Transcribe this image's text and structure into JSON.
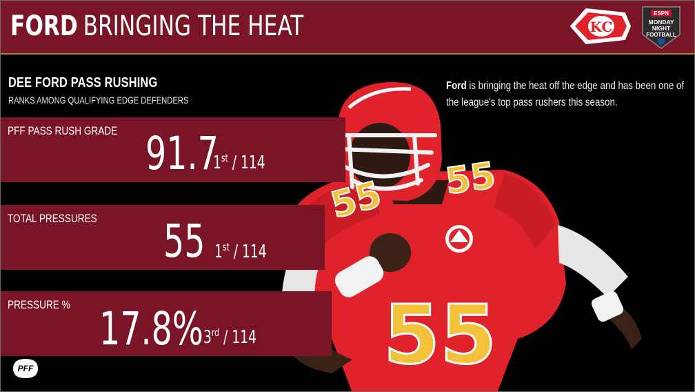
{
  "header": {
    "title_bold": "FORD",
    "title_rest": "BRINGING THE HEAT",
    "team_logo": "kc-chiefs-arrowhead-logo",
    "broadcast_logo": "monday-night-football-logo",
    "broadcast_logo_text": [
      "ESPN",
      "MONDAY",
      "NIGHT",
      "FOOTBALL"
    ]
  },
  "section": {
    "title": "DEE FORD PASS RUSHING",
    "subtitle": "RANKS AMONG QUALIFYING EDGE DEFENDERS"
  },
  "description": {
    "name": "Ford",
    "text": " is bringing the heat off the edge and has been one of the league's top pass rushers this season."
  },
  "stats": [
    {
      "label": "PFF PASS RUSH GRADE",
      "value": "91.7",
      "rank": "1",
      "rank_suffix": "st",
      "total": " / 114"
    },
    {
      "label": "TOTAL PRESSURES",
      "value": "55",
      "rank": "1",
      "rank_suffix": "st",
      "total": " / 114"
    },
    {
      "label": "PRESSURE %",
      "value": "17.8%",
      "rank": "3",
      "rank_suffix": "rd",
      "total": " / 114"
    }
  ],
  "player": {
    "jersey_number": "55"
  },
  "footer": {
    "brand_logo": "pff-logo",
    "brand_text": "PFF"
  },
  "colors": {
    "primary": "#7a1528",
    "accent": "#b08a2a",
    "background": "#000000",
    "jersey_red": "#e0222b",
    "jersey_gold": "#f3c23a"
  }
}
